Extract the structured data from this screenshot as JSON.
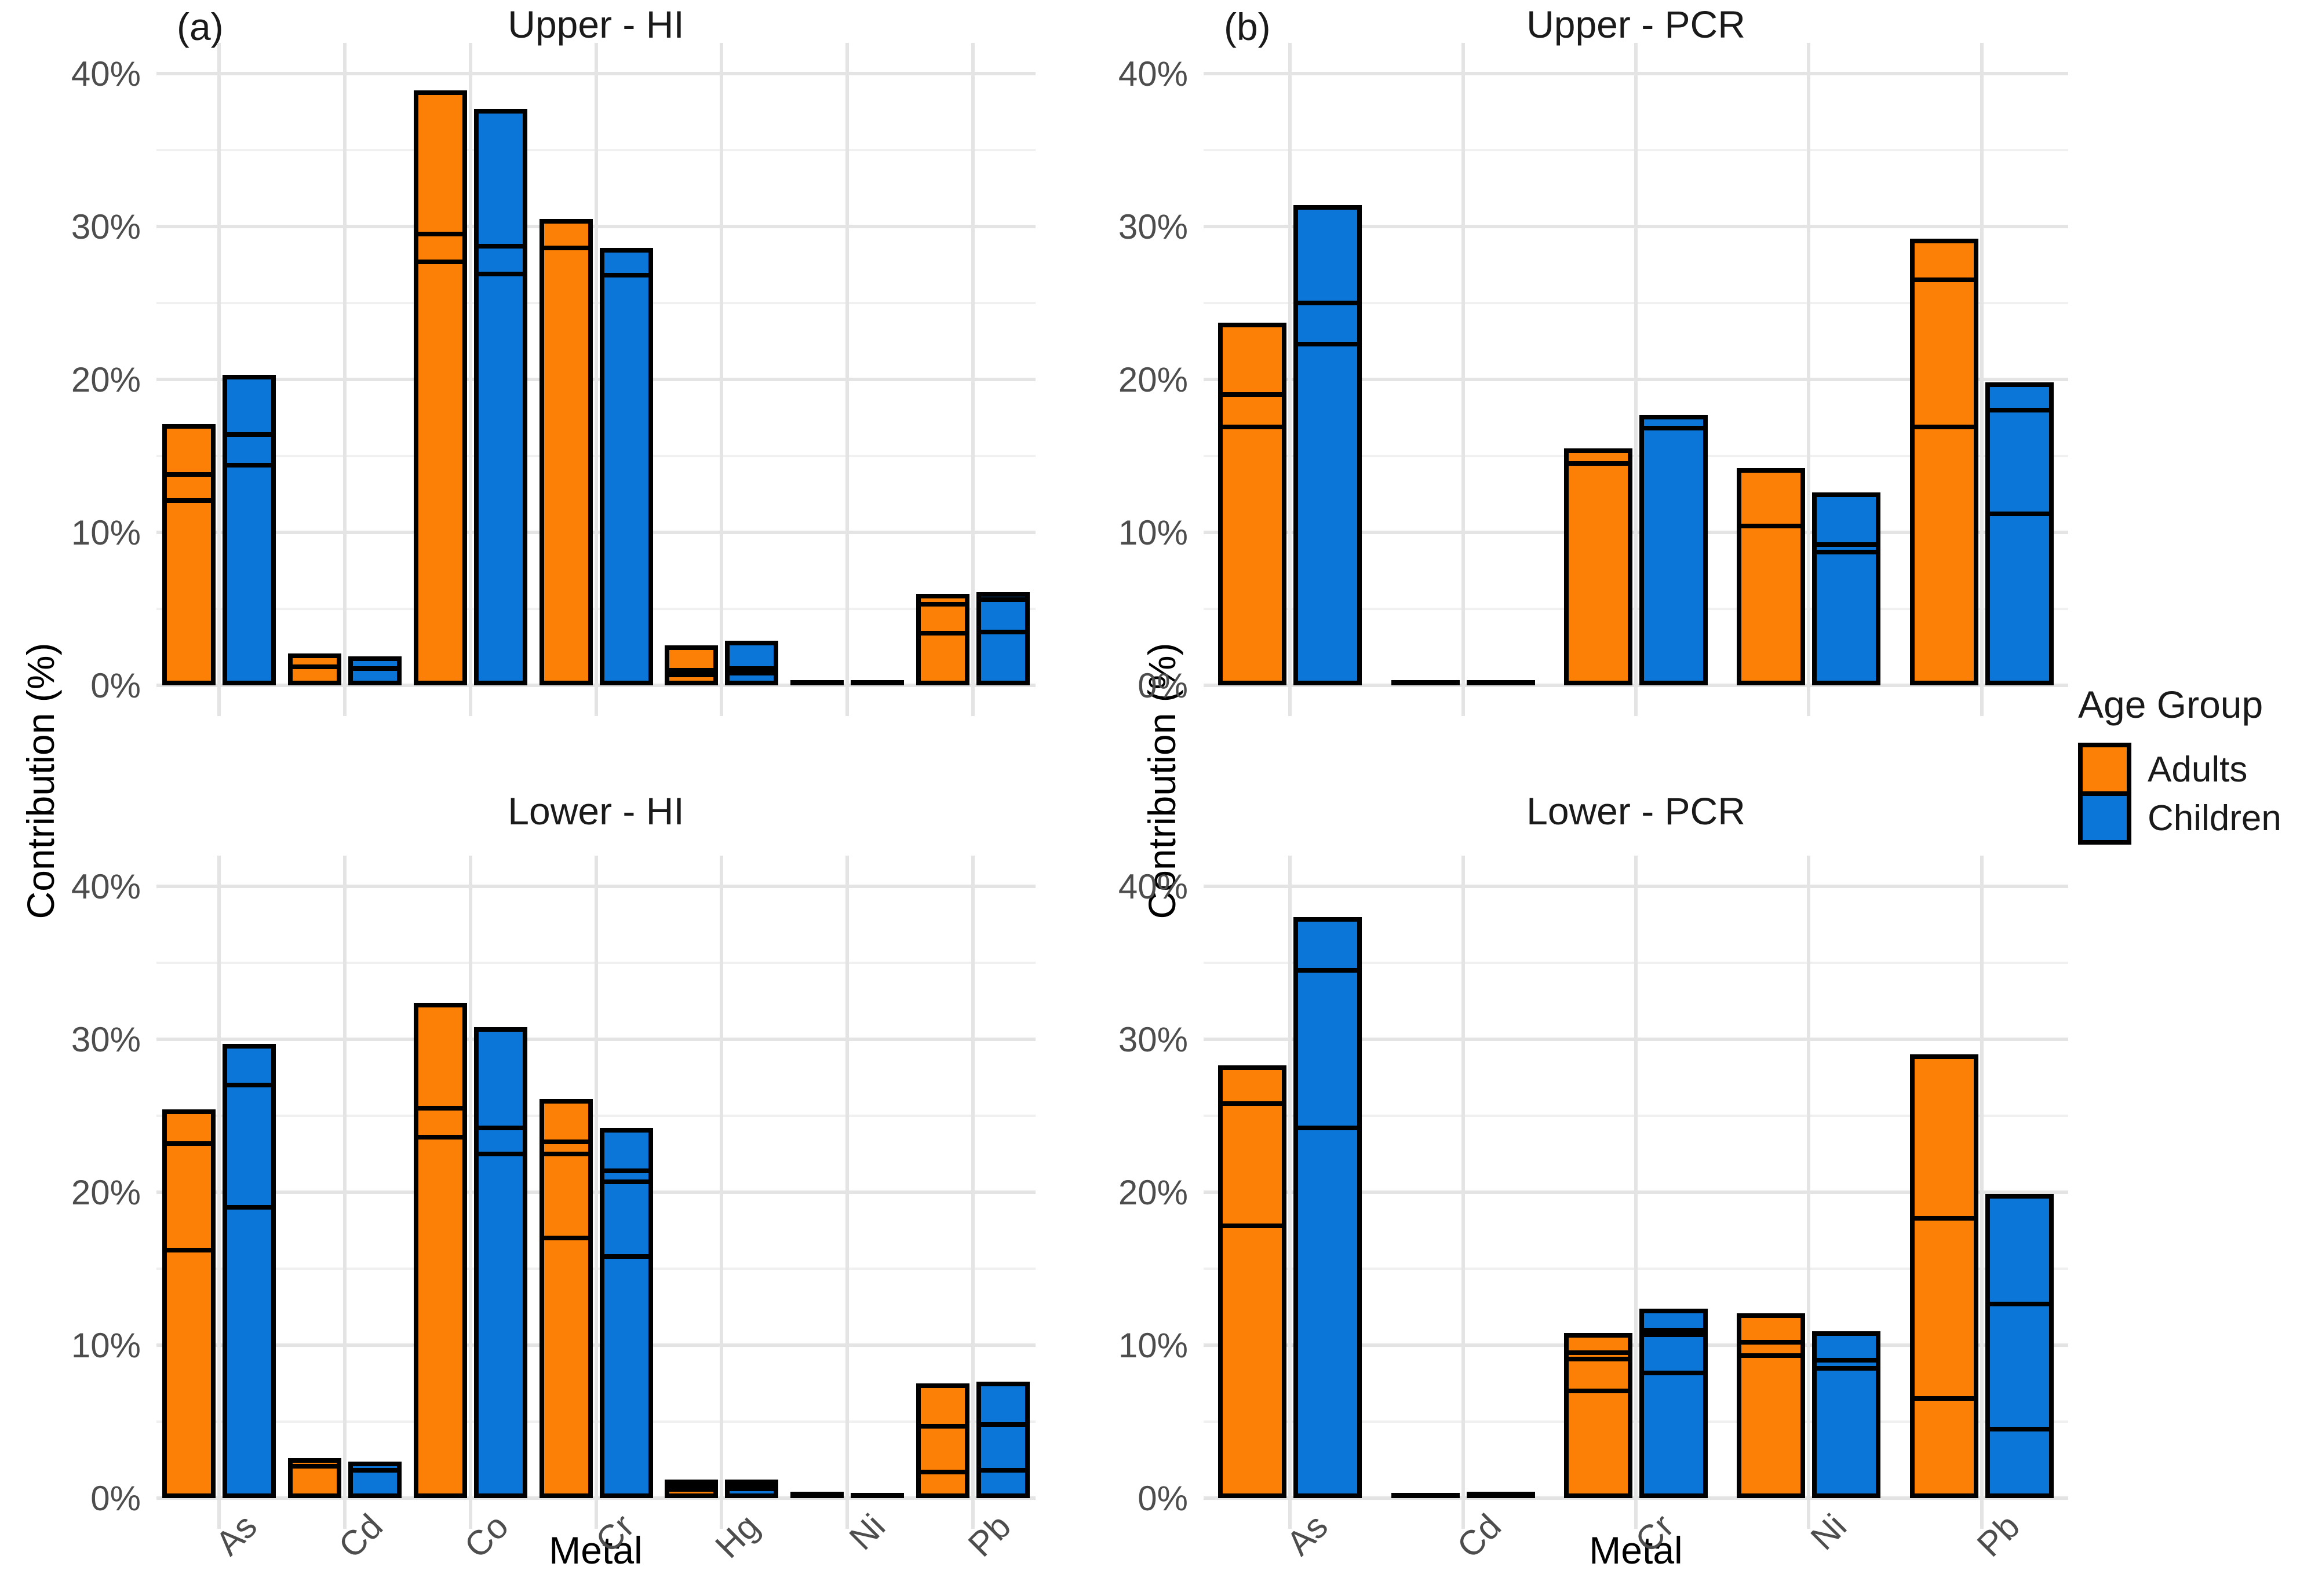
{
  "figure": {
    "panel_a_label": "(a)",
    "panel_b_label": "(b)",
    "x_axis_title": "Metal",
    "y_axis_title": "Contribution (%)",
    "colors": {
      "adults": "#FC8005",
      "children": "#0B76D8",
      "bar_outline": "#000000",
      "axis_text": "#4d4d4d",
      "grid_major": "#e4e4e4",
      "grid_minor": "#f0f0f0"
    },
    "legend": {
      "title": "Age Group",
      "items": [
        {
          "label": "Adults",
          "color": "#FC8005"
        },
        {
          "label": "Children",
          "color": "#0B76D8"
        }
      ]
    }
  },
  "chart_data": [
    {
      "type": "bar",
      "title": "Upper - HI",
      "column": "left",
      "row": "upper",
      "stacked": true,
      "grid": true,
      "ylim": [
        0,
        40
      ],
      "yticks": [
        "0%",
        "10%",
        "20%",
        "30%",
        "40%"
      ],
      "categories": [
        "As",
        "Cd",
        "Co",
        "Cr",
        "Hg",
        "Ni",
        "Pb"
      ],
      "series": [
        {
          "name": "Adults",
          "color": "#FC8005",
          "bars": [
            {
              "total": 17.1,
              "boundaries": [
                13.8,
                12.1
              ]
            },
            {
              "total": 2.1,
              "boundaries": [
                1.2
              ]
            },
            {
              "total": 38.9,
              "boundaries": [
                29.5,
                27.7
              ]
            },
            {
              "total": 30.5,
              "boundaries": [
                28.6
              ]
            },
            {
              "total": 2.6,
              "boundaries": [
                1.0,
                0.7
              ]
            },
            {
              "total": 0.35,
              "boundaries": []
            },
            {
              "total": 6.0,
              "boundaries": [
                5.3,
                3.4
              ]
            }
          ]
        },
        {
          "name": "Children",
          "color": "#0B76D8",
          "bars": [
            {
              "total": 20.3,
              "boundaries": [
                16.4,
                14.4
              ]
            },
            {
              "total": 1.9,
              "boundaries": [
                1.1
              ]
            },
            {
              "total": 37.7,
              "boundaries": [
                28.7,
                26.9
              ]
            },
            {
              "total": 28.6,
              "boundaries": [
                26.8
              ]
            },
            {
              "total": 2.9,
              "boundaries": [
                1.1,
                0.8
              ]
            },
            {
              "total": 0.2,
              "boundaries": []
            },
            {
              "total": 6.1,
              "boundaries": [
                5.6,
                3.5
              ]
            }
          ]
        }
      ]
    },
    {
      "type": "bar",
      "title": "Lower - HI",
      "column": "left",
      "row": "lower",
      "stacked": true,
      "grid": true,
      "ylim": [
        0,
        40
      ],
      "yticks": [
        "0%",
        "10%",
        "20%",
        "30%",
        "40%"
      ],
      "categories": [
        "As",
        "Cd",
        "Co",
        "Cr",
        "Hg",
        "Ni",
        "Pb"
      ],
      "series": [
        {
          "name": "Adults",
          "color": "#FC8005",
          "bars": [
            {
              "total": 25.4,
              "boundaries": [
                23.2,
                16.2
              ]
            },
            {
              "total": 2.6,
              "boundaries": [
                2.1
              ]
            },
            {
              "total": 32.4,
              "boundaries": [
                25.5,
                23.6
              ]
            },
            {
              "total": 26.1,
              "boundaries": [
                23.3,
                22.5,
                17.0
              ]
            },
            {
              "total": 1.2,
              "boundaries": [
                0.8,
                0.55
              ]
            },
            {
              "total": 0.4,
              "boundaries": []
            },
            {
              "total": 7.5,
              "boundaries": [
                4.7,
                1.7
              ]
            }
          ]
        },
        {
          "name": "Children",
          "color": "#0B76D8",
          "bars": [
            {
              "total": 29.7,
              "boundaries": [
                27.0,
                19.0
              ]
            },
            {
              "total": 2.4,
              "boundaries": [
                1.8
              ]
            },
            {
              "total": 30.8,
              "boundaries": [
                24.2,
                22.5
              ]
            },
            {
              "total": 24.2,
              "boundaries": [
                21.4,
                20.7,
                15.8
              ]
            },
            {
              "total": 1.2,
              "boundaries": [
                0.85,
                0.6
              ]
            },
            {
              "total": 0.15,
              "boundaries": []
            },
            {
              "total": 7.6,
              "boundaries": [
                4.8,
                1.8
              ]
            }
          ]
        }
      ]
    },
    {
      "type": "bar",
      "title": "Upper - PCR",
      "column": "right",
      "row": "upper",
      "stacked": true,
      "grid": true,
      "ylim": [
        0,
        40
      ],
      "yticks": [
        "0%",
        "10%",
        "20%",
        "30%",
        "40%"
      ],
      "categories": [
        "As",
        "Cd",
        "Cr",
        "Ni",
        "Pb"
      ],
      "series": [
        {
          "name": "Adults",
          "color": "#FC8005",
          "bars": [
            {
              "total": 23.7,
              "boundaries": [
                19.0,
                16.9
              ]
            },
            {
              "total": 0.3,
              "boundaries": []
            },
            {
              "total": 15.5,
              "boundaries": [
                14.5
              ]
            },
            {
              "total": 14.2,
              "boundaries": [
                10.4
              ]
            },
            {
              "total": 29.2,
              "boundaries": [
                26.5,
                16.9
              ]
            }
          ]
        },
        {
          "name": "Children",
          "color": "#0B76D8",
          "bars": [
            {
              "total": 31.4,
              "boundaries": [
                25.0,
                22.3
              ]
            },
            {
              "total": 0.35,
              "boundaries": []
            },
            {
              "total": 17.7,
              "boundaries": [
                16.8
              ]
            },
            {
              "total": 12.6,
              "boundaries": [
                9.2,
                8.7
              ]
            },
            {
              "total": 19.8,
              "boundaries": [
                18.0,
                11.2
              ]
            }
          ]
        }
      ]
    },
    {
      "type": "bar",
      "title": "Lower - PCR",
      "column": "right",
      "row": "lower",
      "stacked": true,
      "grid": true,
      "ylim": [
        0,
        40
      ],
      "yticks": [
        "0%",
        "10%",
        "20%",
        "30%",
        "40%"
      ],
      "categories": [
        "As",
        "Cd",
        "Cr",
        "Ni",
        "Pb"
      ],
      "series": [
        {
          "name": "Adults",
          "color": "#FC8005",
          "bars": [
            {
              "total": 28.3,
              "boundaries": [
                25.8,
                17.8
              ]
            },
            {
              "total": 0.35,
              "boundaries": []
            },
            {
              "total": 10.8,
              "boundaries": [
                9.5,
                9.1,
                7.0
              ]
            },
            {
              "total": 12.1,
              "boundaries": [
                10.2,
                9.3
              ]
            },
            {
              "total": 29.0,
              "boundaries": [
                18.3,
                6.5
              ]
            }
          ]
        },
        {
          "name": "Children",
          "color": "#0B76D8",
          "bars": [
            {
              "total": 38.0,
              "boundaries": [
                34.5,
                24.2
              ]
            },
            {
              "total": 0.4,
              "boundaries": []
            },
            {
              "total": 12.4,
              "boundaries": [
                11.0,
                10.7,
                8.2
              ]
            },
            {
              "total": 10.9,
              "boundaries": [
                9.0,
                8.5
              ]
            },
            {
              "total": 19.9,
              "boundaries": [
                12.7,
                4.5
              ]
            }
          ]
        }
      ]
    }
  ]
}
